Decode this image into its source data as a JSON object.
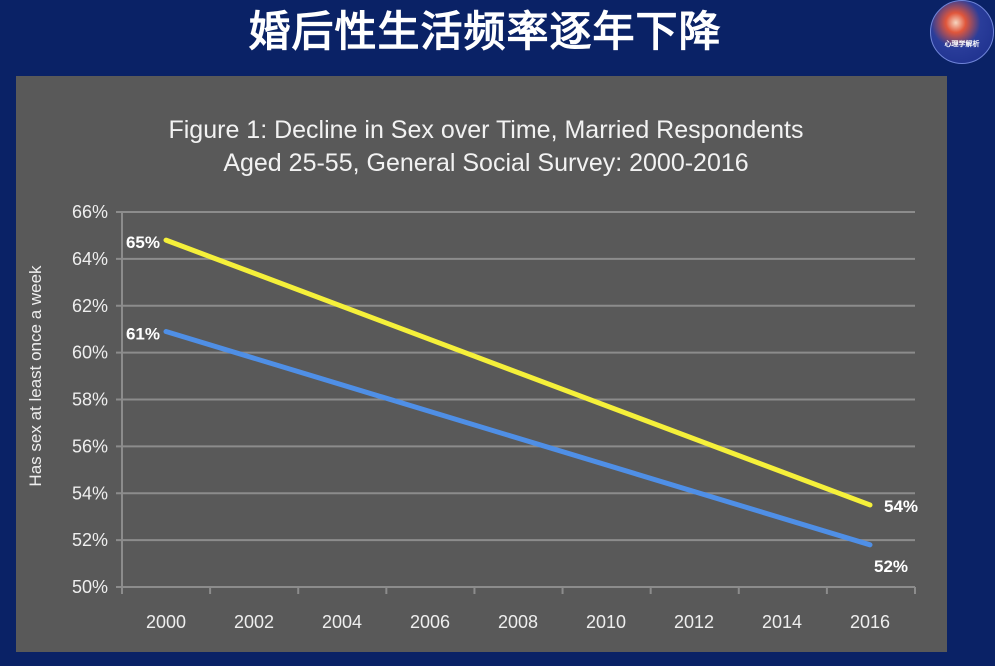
{
  "slide": {
    "title": "婚后性生活频率逐年下降",
    "logo_text": "心理学解析",
    "background_color": "#0a2266",
    "panel_color": "#595959"
  },
  "chart_data": {
    "type": "line",
    "title": "Figure 1: Decline in Sex over Time,  Married Respondents Aged 25-55, General Social Survey: 2000-2016",
    "title_lines": [
      "Figure 1: Decline in Sex over Time,  Married Respondents",
      "Aged 25-55, General Social Survey: 2000-2016"
    ],
    "xlabel": "",
    "ylabel": "Has sex at least once a week",
    "x": [
      2000,
      2002,
      2004,
      2006,
      2008,
      2010,
      2012,
      2014,
      2016
    ],
    "x_tick_labels": [
      "2000",
      "2002",
      "2004",
      "2006",
      "2008",
      "2010",
      "2012",
      "2014",
      "2016"
    ],
    "y_tick_labels": [
      "66%",
      "64%",
      "62%",
      "60%",
      "58%",
      "56%",
      "54%",
      "52%",
      "50%"
    ],
    "ylim": [
      50,
      66
    ],
    "grid": "horizontal",
    "legend": "none",
    "series": [
      {
        "name": "Upper trend (yellow)",
        "color": "#f5f03a",
        "start": {
          "x": 2000,
          "y": 64.8,
          "label": "65%"
        },
        "end": {
          "x": 2016,
          "y": 53.5,
          "label": "54%"
        }
      },
      {
        "name": "Lower trend (blue)",
        "color": "#4f8fe6",
        "start": {
          "x": 2000,
          "y": 60.9,
          "label": "61%"
        },
        "end": {
          "x": 2016,
          "y": 51.8,
          "label": "52%"
        }
      }
    ]
  }
}
